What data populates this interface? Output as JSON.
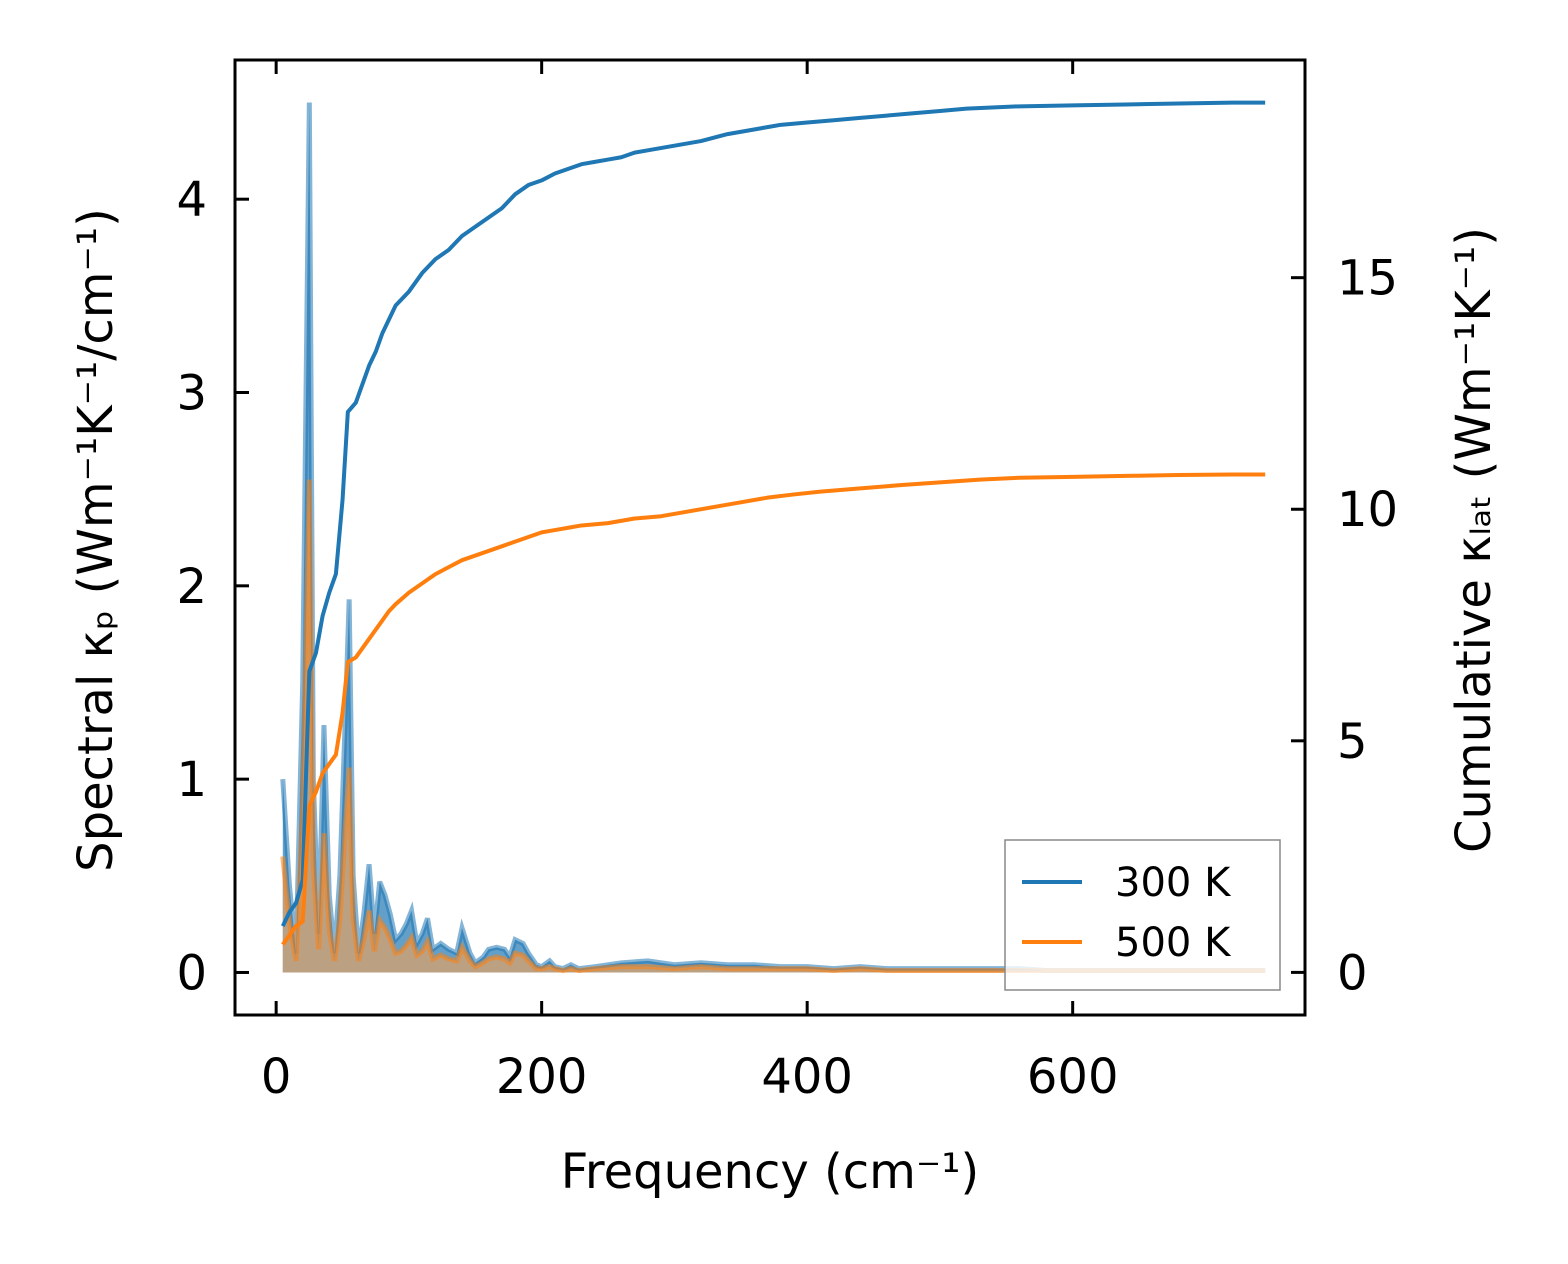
{
  "chart_data": {
    "type": "line",
    "title": "",
    "xlabel": "Frequency (cm⁻¹)",
    "ylabel_left": "Spectral κₚ (Wm⁻¹K⁻¹/cm⁻¹)",
    "ylabel_right": "Cumulative κₗₐₜ (Wm⁻¹K⁻¹)",
    "xlim": [
      -31,
      775
    ],
    "ylim_left": [
      -0.22,
      4.72
    ],
    "ylim_right": [
      -0.92,
      19.7
    ],
    "x_ticks": [
      0,
      200,
      400,
      600
    ],
    "x_tick_labels": [
      "0",
      "200",
      "400",
      "600"
    ],
    "y_left_ticks": [
      0,
      1,
      2,
      3,
      4
    ],
    "y_left_tick_labels": [
      "0",
      "1",
      "2",
      "3",
      "4"
    ],
    "y_right_ticks": [
      0,
      5,
      10,
      15
    ],
    "y_right_tick_labels": [
      "0",
      "5",
      "10",
      "15"
    ],
    "grid": false,
    "legend_position": "lower-right",
    "legend": [
      {
        "name": "300 K",
        "color": "#1f77b4"
      },
      {
        "name": "500 K",
        "color": "#ff7f0e"
      }
    ],
    "cumulative_series": [
      {
        "name": "300 K",
        "color": "#1f77b4",
        "axis": "right",
        "points": [
          [
            5,
            1.0
          ],
          [
            10,
            1.3
          ],
          [
            15,
            1.5
          ],
          [
            20,
            2.0
          ],
          [
            25,
            6.5
          ],
          [
            30,
            6.9
          ],
          [
            35,
            7.7
          ],
          [
            40,
            8.2
          ],
          [
            45,
            8.6
          ],
          [
            50,
            10.2
          ],
          [
            54,
            12.1
          ],
          [
            60,
            12.3
          ],
          [
            65,
            12.7
          ],
          [
            70,
            13.1
          ],
          [
            75,
            13.4
          ],
          [
            80,
            13.8
          ],
          [
            85,
            14.1
          ],
          [
            90,
            14.4
          ],
          [
            100,
            14.7
          ],
          [
            110,
            15.1
          ],
          [
            120,
            15.4
          ],
          [
            130,
            15.6
          ],
          [
            140,
            15.9
          ],
          [
            150,
            16.1
          ],
          [
            160,
            16.3
          ],
          [
            170,
            16.5
          ],
          [
            180,
            16.8
          ],
          [
            190,
            17.0
          ],
          [
            200,
            17.1
          ],
          [
            210,
            17.25
          ],
          [
            220,
            17.35
          ],
          [
            230,
            17.45
          ],
          [
            240,
            17.5
          ],
          [
            250,
            17.55
          ],
          [
            260,
            17.6
          ],
          [
            270,
            17.7
          ],
          [
            280,
            17.75
          ],
          [
            300,
            17.85
          ],
          [
            320,
            17.95
          ],
          [
            340,
            18.1
          ],
          [
            360,
            18.2
          ],
          [
            380,
            18.3
          ],
          [
            400,
            18.35
          ],
          [
            420,
            18.4
          ],
          [
            440,
            18.45
          ],
          [
            460,
            18.5
          ],
          [
            480,
            18.55
          ],
          [
            500,
            18.6
          ],
          [
            520,
            18.65
          ],
          [
            560,
            18.7
          ],
          [
            600,
            18.72
          ],
          [
            640,
            18.74
          ],
          [
            680,
            18.76
          ],
          [
            720,
            18.78
          ],
          [
            745,
            18.78
          ]
        ]
      },
      {
        "name": "500 K",
        "color": "#ff7f0e",
        "axis": "right",
        "points": [
          [
            5,
            0.6
          ],
          [
            10,
            0.8
          ],
          [
            15,
            1.0
          ],
          [
            20,
            1.1
          ],
          [
            25,
            3.6
          ],
          [
            30,
            3.9
          ],
          [
            35,
            4.3
          ],
          [
            40,
            4.5
          ],
          [
            45,
            4.7
          ],
          [
            50,
            5.6
          ],
          [
            54,
            6.7
          ],
          [
            60,
            6.8
          ],
          [
            65,
            7.0
          ],
          [
            70,
            7.2
          ],
          [
            75,
            7.4
          ],
          [
            80,
            7.6
          ],
          [
            85,
            7.8
          ],
          [
            90,
            7.95
          ],
          [
            100,
            8.2
          ],
          [
            110,
            8.4
          ],
          [
            120,
            8.6
          ],
          [
            130,
            8.75
          ],
          [
            140,
            8.9
          ],
          [
            150,
            9.0
          ],
          [
            160,
            9.1
          ],
          [
            170,
            9.2
          ],
          [
            180,
            9.3
          ],
          [
            190,
            9.4
          ],
          [
            200,
            9.5
          ],
          [
            210,
            9.55
          ],
          [
            220,
            9.6
          ],
          [
            230,
            9.65
          ],
          [
            250,
            9.7
          ],
          [
            270,
            9.8
          ],
          [
            290,
            9.85
          ],
          [
            310,
            9.95
          ],
          [
            330,
            10.05
          ],
          [
            350,
            10.15
          ],
          [
            370,
            10.25
          ],
          [
            390,
            10.32
          ],
          [
            410,
            10.38
          ],
          [
            440,
            10.45
          ],
          [
            470,
            10.52
          ],
          [
            500,
            10.58
          ],
          [
            530,
            10.64
          ],
          [
            560,
            10.68
          ],
          [
            600,
            10.7
          ],
          [
            640,
            10.72
          ],
          [
            680,
            10.74
          ],
          [
            720,
            10.75
          ],
          [
            745,
            10.75
          ]
        ]
      }
    ],
    "spectral_series": [
      {
        "name": "300 K",
        "color": "#1f77b4",
        "axis": "left",
        "points": [
          [
            5,
            1.0
          ],
          [
            10,
            0.45
          ],
          [
            15,
            0.1
          ],
          [
            20,
            1.5
          ],
          [
            25,
            4.5
          ],
          [
            28,
            1.0
          ],
          [
            32,
            0.2
          ],
          [
            36,
            1.28
          ],
          [
            40,
            0.4
          ],
          [
            44,
            0.1
          ],
          [
            48,
            0.5
          ],
          [
            52,
            1.3
          ],
          [
            55,
            1.93
          ],
          [
            58,
            0.5
          ],
          [
            62,
            0.1
          ],
          [
            66,
            0.3
          ],
          [
            70,
            0.56
          ],
          [
            74,
            0.2
          ],
          [
            78,
            0.47
          ],
          [
            82,
            0.4
          ],
          [
            86,
            0.3
          ],
          [
            90,
            0.17
          ],
          [
            94,
            0.2
          ],
          [
            98,
            0.25
          ],
          [
            102,
            0.32
          ],
          [
            106,
            0.15
          ],
          [
            110,
            0.2
          ],
          [
            114,
            0.28
          ],
          [
            118,
            0.12
          ],
          [
            124,
            0.15
          ],
          [
            130,
            0.12
          ],
          [
            136,
            0.1
          ],
          [
            140,
            0.23
          ],
          [
            146,
            0.1
          ],
          [
            150,
            0.05
          ],
          [
            156,
            0.08
          ],
          [
            160,
            0.12
          ],
          [
            166,
            0.13
          ],
          [
            172,
            0.12
          ],
          [
            176,
            0.08
          ],
          [
            180,
            0.17
          ],
          [
            186,
            0.15
          ],
          [
            190,
            0.1
          ],
          [
            196,
            0.04
          ],
          [
            200,
            0.03
          ],
          [
            206,
            0.06
          ],
          [
            210,
            0.03
          ],
          [
            216,
            0.02
          ],
          [
            222,
            0.04
          ],
          [
            228,
            0.02
          ],
          [
            240,
            0.03
          ],
          [
            260,
            0.05
          ],
          [
            280,
            0.06
          ],
          [
            300,
            0.04
          ],
          [
            320,
            0.05
          ],
          [
            340,
            0.04
          ],
          [
            360,
            0.04
          ],
          [
            380,
            0.03
          ],
          [
            400,
            0.03
          ],
          [
            420,
            0.02
          ],
          [
            440,
            0.03
          ],
          [
            460,
            0.02
          ],
          [
            480,
            0.02
          ],
          [
            500,
            0.02
          ],
          [
            520,
            0.02
          ],
          [
            540,
            0.02
          ],
          [
            560,
            0.02
          ],
          [
            580,
            0.01
          ],
          [
            600,
            0.01
          ],
          [
            640,
            0.01
          ],
          [
            680,
            0.01
          ],
          [
            720,
            0.01
          ],
          [
            745,
            0.01
          ]
        ]
      },
      {
        "name": "500 K",
        "color": "#ff7f0e",
        "axis": "left",
        "points": [
          [
            5,
            0.6
          ],
          [
            10,
            0.26
          ],
          [
            15,
            0.06
          ],
          [
            20,
            0.85
          ],
          [
            25,
            2.55
          ],
          [
            28,
            0.56
          ],
          [
            32,
            0.12
          ],
          [
            36,
            0.72
          ],
          [
            40,
            0.22
          ],
          [
            44,
            0.06
          ],
          [
            48,
            0.28
          ],
          [
            52,
            0.74
          ],
          [
            55,
            1.06
          ],
          [
            58,
            0.28
          ],
          [
            62,
            0.06
          ],
          [
            66,
            0.17
          ],
          [
            70,
            0.32
          ],
          [
            74,
            0.11
          ],
          [
            78,
            0.27
          ],
          [
            82,
            0.23
          ],
          [
            86,
            0.17
          ],
          [
            90,
            0.1
          ],
          [
            94,
            0.11
          ],
          [
            98,
            0.14
          ],
          [
            102,
            0.18
          ],
          [
            106,
            0.09
          ],
          [
            110,
            0.11
          ],
          [
            114,
            0.16
          ],
          [
            118,
            0.07
          ],
          [
            124,
            0.09
          ],
          [
            130,
            0.07
          ],
          [
            136,
            0.06
          ],
          [
            140,
            0.13
          ],
          [
            146,
            0.06
          ],
          [
            150,
            0.03
          ],
          [
            156,
            0.05
          ],
          [
            160,
            0.07
          ],
          [
            166,
            0.08
          ],
          [
            172,
            0.07
          ],
          [
            176,
            0.05
          ],
          [
            180,
            0.1
          ],
          [
            186,
            0.09
          ],
          [
            190,
            0.06
          ],
          [
            196,
            0.02
          ],
          [
            200,
            0.02
          ],
          [
            206,
            0.03
          ],
          [
            210,
            0.02
          ],
          [
            216,
            0.01
          ],
          [
            222,
            0.02
          ],
          [
            228,
            0.01
          ],
          [
            240,
            0.02
          ],
          [
            260,
            0.03
          ],
          [
            280,
            0.03
          ],
          [
            300,
            0.02
          ],
          [
            320,
            0.03
          ],
          [
            340,
            0.02
          ],
          [
            360,
            0.02
          ],
          [
            380,
            0.02
          ],
          [
            400,
            0.02
          ],
          [
            420,
            0.01
          ],
          [
            440,
            0.02
          ],
          [
            460,
            0.01
          ],
          [
            480,
            0.01
          ],
          [
            500,
            0.01
          ],
          [
            520,
            0.01
          ],
          [
            540,
            0.01
          ],
          [
            560,
            0.01
          ],
          [
            580,
            0.01
          ],
          [
            600,
            0.01
          ],
          [
            640,
            0.01
          ],
          [
            680,
            0.01
          ],
          [
            720,
            0.01
          ],
          [
            745,
            0.01
          ]
        ]
      }
    ]
  }
}
